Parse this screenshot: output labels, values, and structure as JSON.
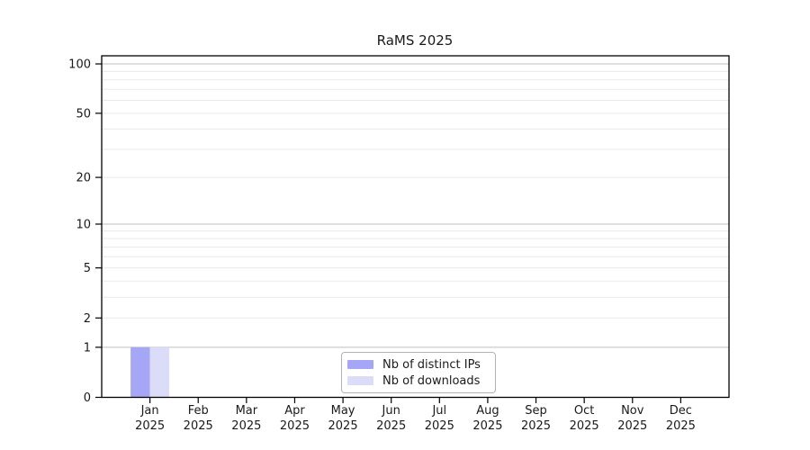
{
  "title": "RaMS 2025",
  "chart_data": {
    "type": "bar",
    "title": "RaMS 2025",
    "categories": [
      {
        "month": "Jan",
        "year": "2025"
      },
      {
        "month": "Feb",
        "year": "2025"
      },
      {
        "month": "Mar",
        "year": "2025"
      },
      {
        "month": "Apr",
        "year": "2025"
      },
      {
        "month": "May",
        "year": "2025"
      },
      {
        "month": "Jun",
        "year": "2025"
      },
      {
        "month": "Jul",
        "year": "2025"
      },
      {
        "month": "Aug",
        "year": "2025"
      },
      {
        "month": "Sep",
        "year": "2025"
      },
      {
        "month": "Oct",
        "year": "2025"
      },
      {
        "month": "Nov",
        "year": "2025"
      },
      {
        "month": "Dec",
        "year": "2025"
      }
    ],
    "series": [
      {
        "name": "Nb of distinct IPs",
        "color": "#a5a6f5",
        "values": [
          1,
          0,
          0,
          0,
          0,
          0,
          0,
          0,
          0,
          0,
          0,
          0
        ]
      },
      {
        "name": "Nb of downloads",
        "color": "#dbdcf8",
        "values": [
          1,
          0,
          0,
          0,
          0,
          0,
          0,
          0,
          0,
          0,
          0,
          0
        ]
      }
    ],
    "y_scale": "log10(1+y)",
    "ylim": [
      0,
      112
    ],
    "y_ticks": [
      0,
      1,
      2,
      5,
      10,
      20,
      50,
      100
    ],
    "y_gridlines_major": [
      1,
      10,
      100
    ],
    "y_gridlines_minor": [
      2,
      3,
      4,
      5,
      6,
      7,
      8,
      9,
      20,
      30,
      40,
      50,
      60,
      70,
      80,
      90
    ],
    "legend": {
      "position": "bottom-center",
      "entries": [
        "Nb of distinct IPs",
        "Nb of downloads"
      ]
    },
    "colors": {
      "axis": "#000000",
      "text": "#1a1a1a",
      "grid_major": "#bfbfbf",
      "grid_minor": "#e9e9e9",
      "legend_border": "#b3b3b3",
      "background": "#ffffff"
    }
  }
}
